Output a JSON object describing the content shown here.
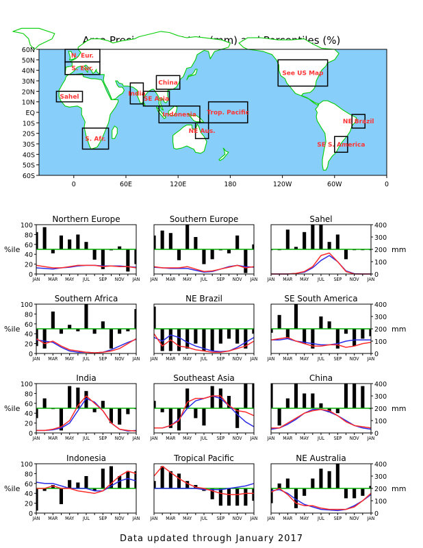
{
  "title": "Area Precipitation Totals (mm) and Percentiles (%)",
  "footer": "Data updated through January 2017",
  "colors": {
    "ocean": "#87cefa",
    "land": "#ffffff",
    "coast": "#00cc00",
    "label": "#ff3333",
    "percentile_bar": "#000000",
    "normal_line": "#00aa00",
    "observed_line": "#ff2a2a",
    "climatology_line": "#2a2ae6"
  },
  "map": {
    "lat_labels": [
      "60N",
      "50N",
      "40N",
      "30N",
      "20N",
      "10N",
      "EQ",
      "10S",
      "20S",
      "30S",
      "40S",
      "50S",
      "60S"
    ],
    "lon_labels": [
      "0",
      "60E",
      "120E",
      "180",
      "120W",
      "60W",
      "0"
    ],
    "regions": [
      {
        "label": "N. Eur.",
        "lon": [
          -10,
          30
        ],
        "lat": [
          48,
          60
        ]
      },
      {
        "label": "S. Eur.",
        "lon": [
          -10,
          30
        ],
        "lat": [
          36,
          48
        ]
      },
      {
        "label": "Sahel",
        "lon": [
          -20,
          10
        ],
        "lat": [
          10,
          20
        ]
      },
      {
        "label": "S. Afr.",
        "lon": [
          10,
          40
        ],
        "lat": [
          -35,
          -15
        ]
      },
      {
        "label": "India",
        "lon": [
          65,
          80
        ],
        "lat": [
          8,
          28
        ]
      },
      {
        "label": "China",
        "lon": [
          95,
          122
        ],
        "lat": [
          22,
          35
        ]
      },
      {
        "label": "SE Asia",
        "lon": [
          80,
          110
        ],
        "lat": [
          6,
          20
        ]
      },
      {
        "label": "Indonesia",
        "lon": [
          98,
          145
        ],
        "lat": [
          -10,
          6
        ]
      },
      {
        "label": "Trop. Pacific",
        "lon": [
          155,
          200
        ],
        "lat": [
          -10,
          10
        ]
      },
      {
        "label": "NE Aus.",
        "lon": [
          140,
          155
        ],
        "lat": [
          -25,
          -10
        ]
      },
      {
        "label": "See US Map",
        "lon": [
          235,
          292
        ],
        "lat": [
          25,
          50
        ]
      },
      {
        "label": "NE Brazil",
        "lon": [
          320,
          335
        ],
        "lat": [
          -15,
          -2
        ]
      },
      {
        "label": "SE S. America",
        "lon": [
          300,
          315
        ],
        "lat": [
          -38,
          -23
        ]
      }
    ]
  },
  "axes": {
    "left_ticks": [
      "100",
      "80",
      "60",
      "40",
      "20",
      "0"
    ],
    "right_ticks": [
      "400",
      "300",
      "200",
      "100",
      "0"
    ],
    "left_unit": "%ile",
    "right_unit": "mm",
    "months": [
      "JAN",
      "MAR",
      "MAY",
      "JUL",
      "SEP",
      "NOV",
      "JAN"
    ]
  },
  "chart_data": [
    {
      "type": "bar",
      "title": "Northern Europe",
      "months": 13,
      "percentile_ylim": [
        0,
        100
      ],
      "precip_ylim": [
        0,
        400
      ],
      "normal_line": 50,
      "percentiles": [
        85,
        95,
        42,
        78,
        70,
        80,
        65,
        29,
        10,
        48,
        56,
        5,
        20
      ],
      "observed_mm": [
        70,
        60,
        50,
        50,
        60,
        70,
        70,
        70,
        60,
        65,
        60,
        60,
        50
      ],
      "climatology_mm": [
        50,
        45,
        40,
        50,
        55,
        65,
        70,
        70,
        65,
        65,
        65,
        60,
        55
      ]
    },
    {
      "type": "bar",
      "title": "Southern Europe",
      "months": 13,
      "percentile_ylim": [
        0,
        100
      ],
      "precip_ylim": [
        0,
        400
      ],
      "normal_line": 50,
      "percentiles": [
        78,
        88,
        83,
        28,
        100,
        75,
        20,
        30,
        48,
        42,
        78,
        2,
        60
      ],
      "observed_mm": [
        60,
        50,
        50,
        50,
        60,
        40,
        20,
        25,
        40,
        55,
        70,
        50,
        60
      ],
      "climatology_mm": [
        55,
        50,
        45,
        45,
        45,
        30,
        15,
        20,
        40,
        60,
        70,
        60,
        55
      ]
    },
    {
      "type": "bar",
      "title": "Sahel",
      "months": 13,
      "percentile_ylim": [
        0,
        100
      ],
      "precip_ylim": [
        0,
        400
      ],
      "normal_line": 50,
      "percentiles": [
        50,
        50,
        90,
        55,
        85,
        100,
        100,
        65,
        80,
        30,
        50,
        50,
        50
      ],
      "observed_mm": [
        0,
        0,
        0,
        5,
        20,
        60,
        150,
        170,
        100,
        20,
        0,
        0,
        0
      ],
      "climatology_mm": [
        0,
        0,
        0,
        5,
        15,
        50,
        110,
        150,
        100,
        25,
        2,
        0,
        0
      ]
    },
    {
      "type": "bar",
      "title": "Southern Africa",
      "months": 13,
      "percentile_ylim": [
        0,
        100
      ],
      "precip_ylim": [
        0,
        400
      ],
      "normal_line": 50,
      "percentiles": [
        15,
        10,
        85,
        40,
        58,
        45,
        100,
        40,
        65,
        10,
        40,
        45,
        90
      ],
      "observed_mm": [
        120,
        80,
        100,
        60,
        30,
        20,
        10,
        5,
        10,
        20,
        40,
        80,
        120
      ],
      "climatology_mm": [
        110,
        100,
        90,
        50,
        20,
        10,
        10,
        5,
        10,
        30,
        60,
        90,
        115
      ]
    },
    {
      "type": "bar",
      "title": "NE Brazil",
      "months": 13,
      "percentile_ylim": [
        0,
        100
      ],
      "precip_ylim": [
        0,
        400
      ],
      "normal_line": 50,
      "percentiles": [
        95,
        5,
        5,
        5,
        10,
        20,
        5,
        5,
        20,
        30,
        20,
        10,
        40
      ],
      "observed_mm": [
        160,
        60,
        110,
        60,
        50,
        30,
        20,
        10,
        10,
        20,
        40,
        60,
        100
      ],
      "climatology_mm": [
        130,
        100,
        150,
        130,
        90,
        60,
        40,
        20,
        15,
        20,
        50,
        90,
        130
      ]
    },
    {
      "type": "bar",
      "title": "SE South America",
      "months": 13,
      "percentile_ylim": [
        0,
        100
      ],
      "precip_ylim": [
        0,
        400
      ],
      "normal_line": 50,
      "percentiles": [
        42,
        78,
        30,
        100,
        20,
        10,
        75,
        65,
        10,
        40,
        15,
        30,
        35
      ],
      "observed_mm": [
        110,
        120,
        130,
        100,
        80,
        60,
        60,
        70,
        70,
        50,
        60,
        80,
        90
      ],
      "climatology_mm": [
        110,
        110,
        120,
        100,
        90,
        80,
        70,
        70,
        80,
        100,
        110,
        110,
        110
      ]
    },
    {
      "type": "bar",
      "title": "India",
      "months": 13,
      "percentile_ylim": [
        0,
        100
      ],
      "precip_ylim": [
        0,
        400
      ],
      "normal_line": 50,
      "percentiles": [
        30,
        70,
        50,
        5,
        95,
        92,
        85,
        42,
        65,
        20,
        17,
        38,
        50
      ],
      "observed_mm": [
        20,
        20,
        30,
        50,
        100,
        220,
        300,
        240,
        180,
        80,
        30,
        20,
        15
      ],
      "climatology_mm": [
        20,
        20,
        25,
        40,
        80,
        180,
        280,
        250,
        180,
        80,
        30,
        15,
        20
      ]
    },
    {
      "type": "bar",
      "title": "Southeast Asia",
      "months": 13,
      "percentile_ylim": [
        0,
        100
      ],
      "precip_ylim": [
        0,
        400
      ],
      "normal_line": 50,
      "percentiles": [
        65,
        42,
        10,
        5,
        90,
        30,
        15,
        95,
        90,
        75,
        10,
        100,
        100
      ],
      "observed_mm": [
        40,
        40,
        60,
        100,
        250,
        280,
        280,
        300,
        300,
        220,
        180,
        170,
        140
      ],
      "climatology_mm": [
        40,
        40,
        60,
        110,
        200,
        260,
        280,
        300,
        280,
        220,
        150,
        90,
        50
      ]
    },
    {
      "type": "bar",
      "title": "China",
      "months": 13,
      "percentile_ylim": [
        0,
        100
      ],
      "precip_ylim": [
        0,
        400
      ],
      "normal_line": 50,
      "percentiles": [
        100,
        15,
        70,
        100,
        80,
        80,
        60,
        42,
        40,
        100,
        100,
        95,
        50
      ],
      "observed_mm": [
        40,
        40,
        80,
        120,
        160,
        180,
        190,
        180,
        140,
        90,
        60,
        50,
        40
      ],
      "climatology_mm": [
        30,
        40,
        70,
        110,
        160,
        190,
        190,
        170,
        140,
        100,
        60,
        40,
        30
      ]
    },
    {
      "type": "bar",
      "title": "Indonesia",
      "months": 13,
      "percentile_ylim": [
        0,
        100
      ],
      "precip_ylim": [
        0,
        400
      ],
      "normal_line": 50,
      "percentiles": [
        5,
        45,
        57,
        18,
        67,
        62,
        75,
        45,
        90,
        95,
        75,
        85,
        85
      ],
      "observed_mm": [
        200,
        200,
        220,
        200,
        200,
        180,
        170,
        160,
        180,
        240,
        300,
        340,
        320
      ],
      "climatology_mm": [
        250,
        240,
        240,
        220,
        200,
        200,
        200,
        180,
        180,
        220,
        260,
        280,
        260
      ]
    },
    {
      "type": "bar",
      "title": "Tropical Pacific",
      "months": 13,
      "percentile_ylim": [
        0,
        100
      ],
      "precip_ylim": [
        0,
        400
      ],
      "normal_line": 50,
      "percentiles": [
        65,
        95,
        85,
        80,
        65,
        57,
        45,
        28,
        15,
        15,
        15,
        15,
        25
      ],
      "observed_mm": [
        300,
        380,
        330,
        280,
        240,
        210,
        200,
        180,
        160,
        150,
        150,
        160,
        160
      ],
      "climatology_mm": [
        200,
        200,
        200,
        200,
        200,
        200,
        190,
        190,
        190,
        200,
        210,
        220,
        240
      ]
    },
    {
      "type": "bar",
      "title": "NE Australia",
      "months": 13,
      "percentile_ylim": [
        0,
        100
      ],
      "precip_ylim": [
        0,
        400
      ],
      "normal_line": 50,
      "percentiles": [
        20,
        60,
        70,
        10,
        35,
        70,
        90,
        85,
        100,
        30,
        30,
        35,
        55
      ],
      "observed_mm": [
        170,
        200,
        150,
        80,
        60,
        60,
        40,
        30,
        30,
        30,
        50,
        100,
        160
      ],
      "climatology_mm": [
        180,
        190,
        160,
        110,
        70,
        50,
        30,
        25,
        20,
        30,
        60,
        100,
        150
      ]
    }
  ]
}
